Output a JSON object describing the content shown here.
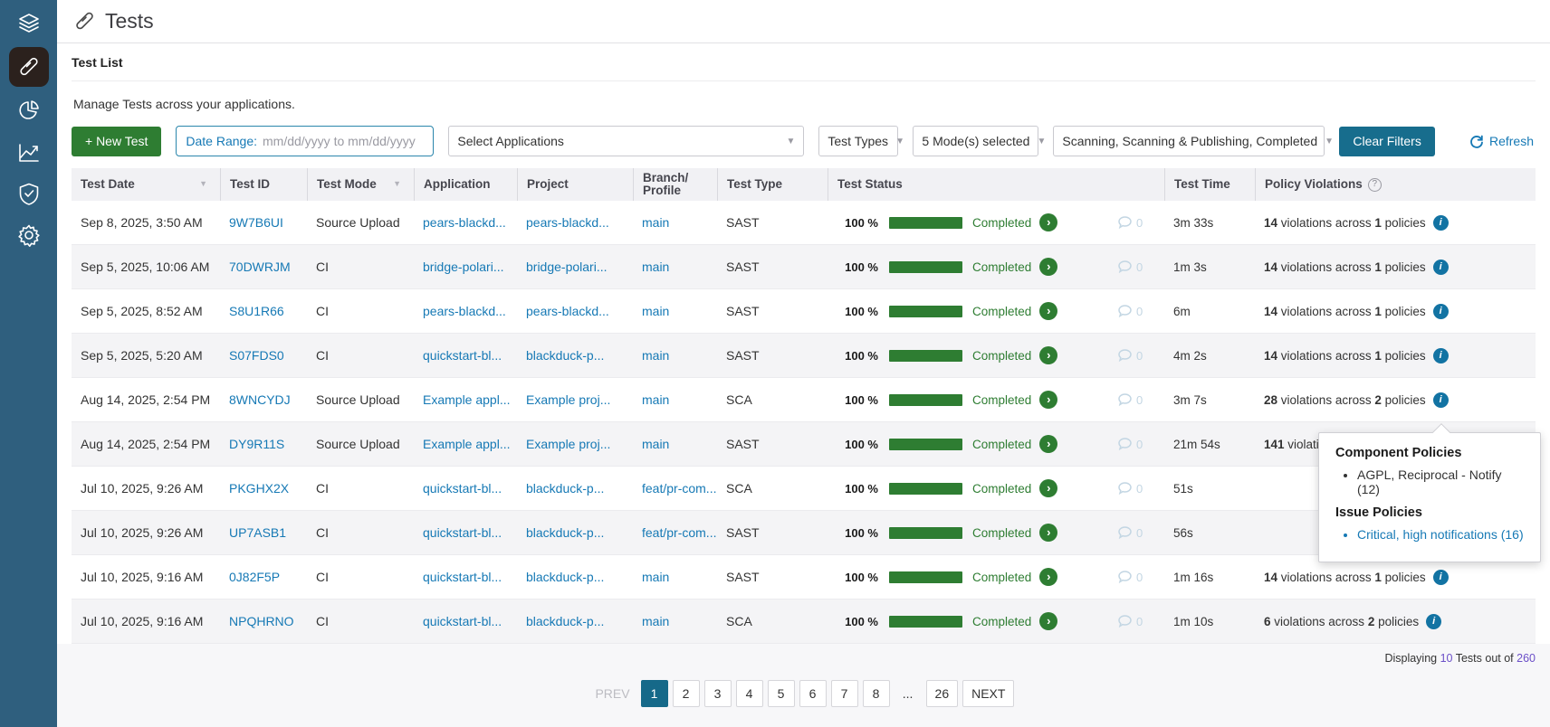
{
  "colors": {
    "sidebar": "#2f5f7e",
    "accent_green": "#2e7d32",
    "link_blue": "#1679b5",
    "teal_button": "#176d8d",
    "info_blue": "#1273a3",
    "pagination_active": "#166989",
    "count_purple": "#6b4fc8"
  },
  "sidebar": {
    "items": [
      {
        "icon": "layers-icon",
        "active": false
      },
      {
        "icon": "test-tube-icon",
        "active": true
      },
      {
        "icon": "pie-chart-icon",
        "active": false
      },
      {
        "icon": "line-chart-icon",
        "active": false
      },
      {
        "icon": "shield-check-icon",
        "active": false
      },
      {
        "icon": "gear-icon",
        "active": false
      }
    ]
  },
  "header": {
    "title": "Tests"
  },
  "intro": {
    "section_title": "Test List",
    "description": "Manage Tests across your applications."
  },
  "filters": {
    "new_test_label": "+ New Test",
    "date_range_label": "Date Range:",
    "date_range_placeholder": "mm/dd/yyyy to mm/dd/yyyy",
    "date_range_value": "",
    "applications_placeholder": "Select Applications",
    "test_types_label": "Test Types",
    "modes_selected": "5 Mode(s) selected",
    "statuses_selected": "Scanning, Scanning & Publishing, Completed",
    "clear_label": "Clear Filters",
    "refresh_label": "Refresh"
  },
  "table": {
    "columns": {
      "date": "Test Date",
      "id": "Test ID",
      "mode": "Test Mode",
      "application": "Application",
      "project": "Project",
      "branch_line1": "Branch/",
      "branch_line2": "Profile",
      "type": "Test Type",
      "status": "Test Status",
      "time": "Test Time",
      "violations": "Policy Violations"
    },
    "violations_text": {
      "mid": " violations across ",
      "suffix": " policies"
    },
    "rows": [
      {
        "date": "Sep 8, 2025, 3:50 AM",
        "id": "9W7B6UI",
        "mode": "Source Upload",
        "application": "pears-blackd...",
        "project": "pears-blackd...",
        "branch": "main",
        "type": "SAST",
        "progress": "100 %",
        "status": "Completed",
        "comments": "0",
        "time": "3m 33s",
        "violations": {
          "count": "14",
          "policies": "1"
        }
      },
      {
        "date": "Sep 5, 2025, 10:06 AM",
        "id": "70DWRJM",
        "mode": "CI",
        "application": "bridge-polari...",
        "project": "bridge-polari...",
        "branch": "main",
        "type": "SAST",
        "progress": "100 %",
        "status": "Completed",
        "comments": "0",
        "time": "1m 3s",
        "violations": {
          "count": "14",
          "policies": "1"
        }
      },
      {
        "date": "Sep 5, 2025, 8:52 AM",
        "id": "S8U1R66",
        "mode": "CI",
        "application": "pears-blackd...",
        "project": "pears-blackd...",
        "branch": "main",
        "type": "SAST",
        "progress": "100 %",
        "status": "Completed",
        "comments": "0",
        "time": "6m",
        "violations": {
          "count": "14",
          "policies": "1"
        }
      },
      {
        "date": "Sep 5, 2025, 5:20 AM",
        "id": "S07FDS0",
        "mode": "CI",
        "application": "quickstart-bl...",
        "project": "blackduck-p...",
        "branch": "main",
        "type": "SAST",
        "progress": "100 %",
        "status": "Completed",
        "comments": "0",
        "time": "4m 2s",
        "violations": {
          "count": "14",
          "policies": "1"
        }
      },
      {
        "date": "Aug 14, 2025, 2:54 PM",
        "id": "8WNCYDJ",
        "mode": "Source Upload",
        "application": "Example appl...",
        "project": "Example proj...",
        "branch": "main",
        "type": "SCA",
        "progress": "100 %",
        "status": "Completed",
        "comments": "0",
        "time": "3m 7s",
        "violations": {
          "count": "28",
          "policies": "2"
        }
      },
      {
        "date": "Aug 14, 2025, 2:54 PM",
        "id": "DY9R11S",
        "mode": "Source Upload",
        "application": "Example appl...",
        "project": "Example proj...",
        "branch": "main",
        "type": "SAST",
        "progress": "100 %",
        "status": "Completed",
        "comments": "0",
        "time": "21m 54s",
        "violations": {
          "count": "141",
          "truncated": "violati..."
        }
      },
      {
        "date": "Jul 10, 2025, 9:26 AM",
        "id": "PKGHX2X",
        "mode": "CI",
        "application": "quickstart-bl...",
        "project": "blackduck-p...",
        "branch": "feat/pr-com...",
        "type": "SCA",
        "progress": "100 %",
        "status": "Completed",
        "comments": "0",
        "time": "51s",
        "violations": null
      },
      {
        "date": "Jul 10, 2025, 9:26 AM",
        "id": "UP7ASB1",
        "mode": "CI",
        "application": "quickstart-bl...",
        "project": "blackduck-p...",
        "branch": "feat/pr-com...",
        "type": "SAST",
        "progress": "100 %",
        "status": "Completed",
        "comments": "0",
        "time": "56s",
        "violations": null
      },
      {
        "date": "Jul 10, 2025, 9:16 AM",
        "id": "0J82F5P",
        "mode": "CI",
        "application": "quickstart-bl...",
        "project": "blackduck-p...",
        "branch": "main",
        "type": "SAST",
        "progress": "100 %",
        "status": "Completed",
        "comments": "0",
        "time": "1m 16s",
        "violations": {
          "count": "14",
          "policies": "1"
        }
      },
      {
        "date": "Jul 10, 2025, 9:16 AM",
        "id": "NPQHRNO",
        "mode": "CI",
        "application": "quickstart-bl...",
        "project": "blackduck-p...",
        "branch": "main",
        "type": "SCA",
        "progress": "100 %",
        "status": "Completed",
        "comments": "0",
        "time": "1m 10s",
        "violations": {
          "count": "6",
          "policies": "2"
        }
      }
    ]
  },
  "tooltip": {
    "heading1": "Component Policies",
    "items1": [
      "AGPL, Reciprocal - Notify (12)"
    ],
    "heading2": "Issue Policies",
    "items2": [
      "Critical, high notifications (16)"
    ]
  },
  "footer": {
    "displaying_prefix": "Displaying ",
    "displaying_count": "10",
    "displaying_mid": " Tests out of ",
    "displaying_total": "260"
  },
  "pagination": {
    "prev": "PREV",
    "next": "NEXT",
    "pages": [
      "1",
      "2",
      "3",
      "4",
      "5",
      "6",
      "7",
      "8",
      "...",
      "26"
    ],
    "active": "1"
  }
}
